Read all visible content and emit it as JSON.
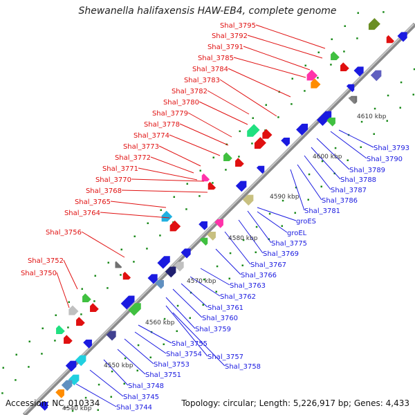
{
  "title": "Shewanella halifaxensis HAW-EB4, complete genome",
  "footer": {
    "accession": "Accession: NC_010334",
    "topology": "Topology: circular; Length: 5,226,917 bp; Genes: 4,433"
  },
  "colors": {
    "forward_label": "#e01010",
    "reverse_label": "#1a1ae0",
    "backbone": "#999999"
  },
  "ticks": [
    "4540 kbp",
    "4550 kbp",
    "4560 kbp",
    "4570 kbp",
    "4580 kbp",
    "4590 kbp",
    "4600 kbp",
    "4610 kbp"
  ],
  "forward_labels": [
    "Shal_3795",
    "Shal_3792",
    "Shal_3791",
    "Shal_3785",
    "Shal_3784",
    "Shal_3783",
    "Shal_3782",
    "Shal_3780",
    "Shal_3779",
    "Shal_3778",
    "Shal_3774",
    "Shal_3773",
    "Shal_3772",
    "Shal_3771",
    "Shal_3770",
    "Shal_3768",
    "Shal_3765",
    "Shal_3764",
    "Shal_3756",
    "Shal_3752",
    "Shal_3750"
  ],
  "reverse_labels": [
    "Shal_3793",
    "Shal_3790",
    "Shal_3789",
    "Shal_3788",
    "Shal_3787",
    "Shal_3786",
    "Shal_3781",
    "groES",
    "groEL",
    "Shal_3775",
    "Shal_3769",
    "Shal_3767",
    "Shal_3766",
    "Shal_3763",
    "Shal_3762",
    "Shal_3761",
    "Shal_3760",
    "Shal_3759",
    "Shal_3757",
    "Shal_3758",
    "Shal_3755",
    "Shal_3754",
    "Shal_3753",
    "Shal_3751",
    "Shal_3748",
    "Shal_3745",
    "Shal_3744"
  ]
}
